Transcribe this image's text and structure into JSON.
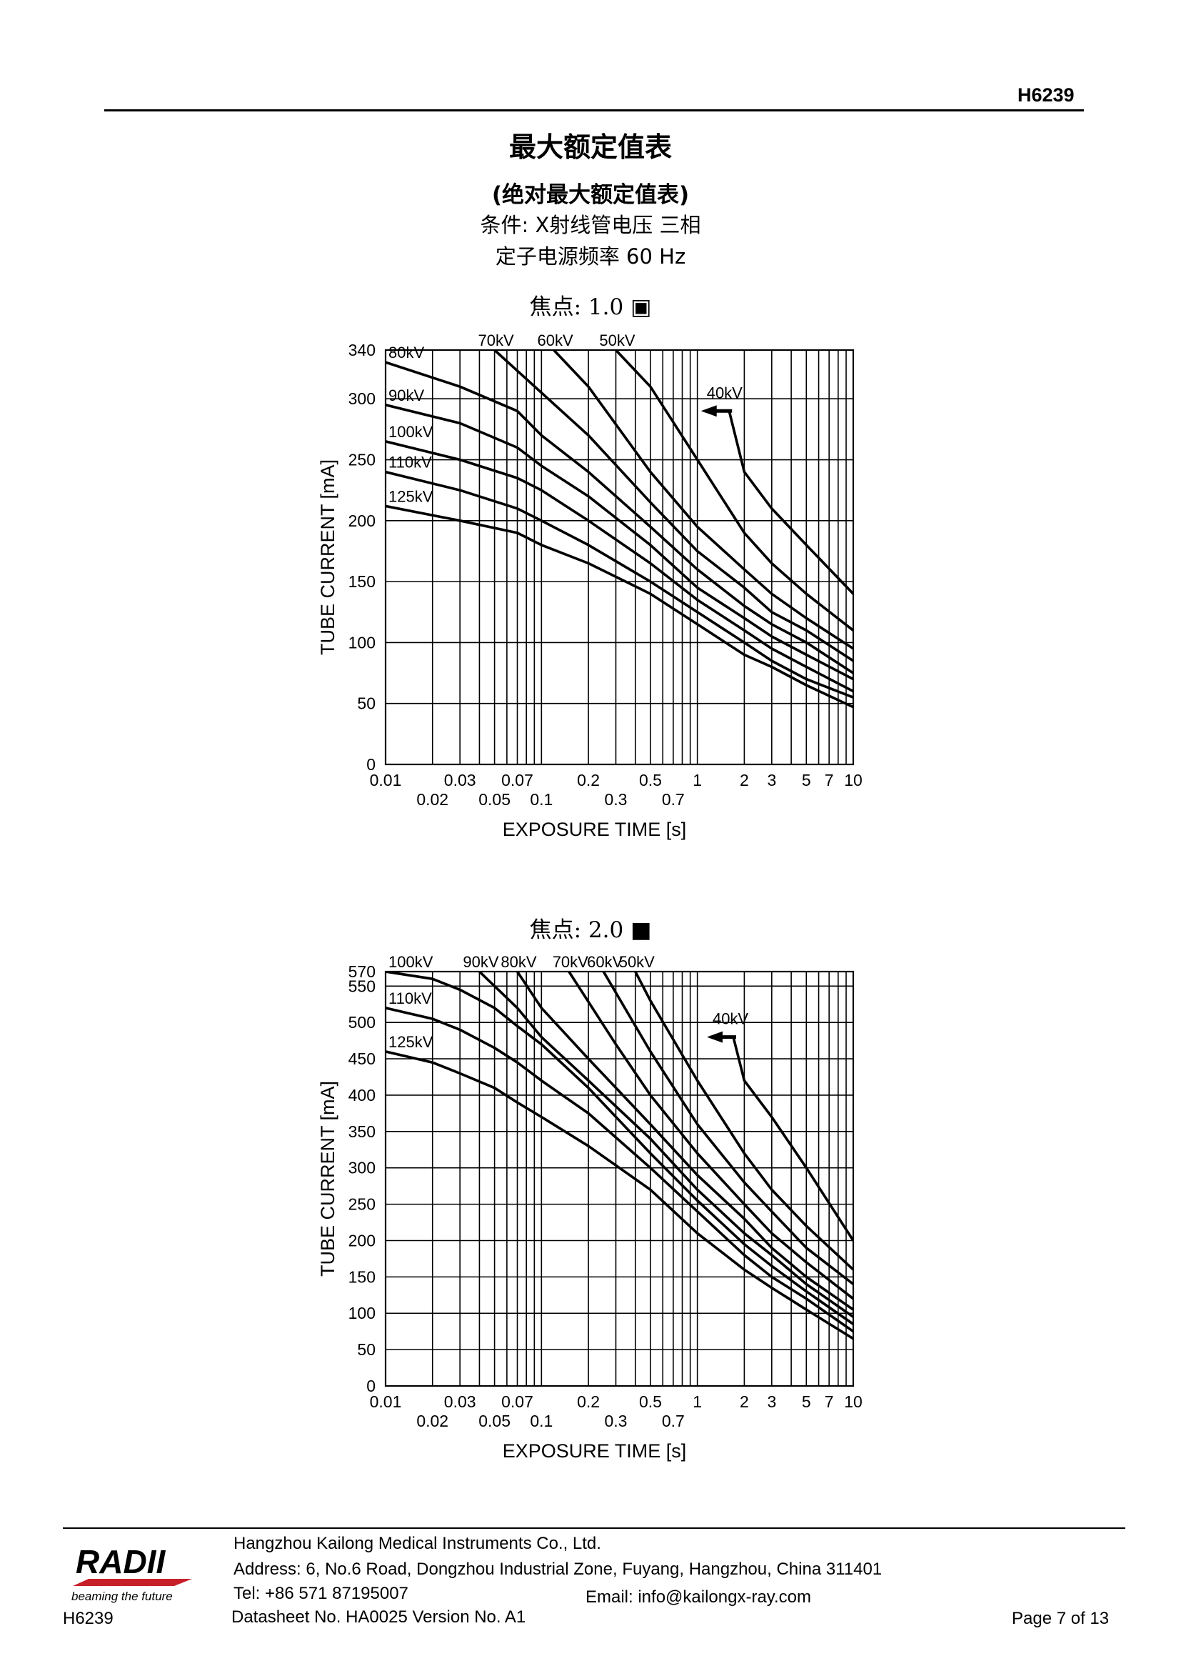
{
  "header": {
    "doc_code": "H6239"
  },
  "title": "最大额定值表",
  "subtitle": "(绝对最大额定值表)",
  "conditions": {
    "line1": "条件: X射线管电压  三相",
    "line2": "定子电源频率  60 Hz"
  },
  "chart_data": [
    {
      "type": "line",
      "title": "焦点: 1.0 ▣",
      "xlabel": "EXPOSURE TIME  [s]",
      "ylabel": "TUBE CURRENT  [mA]",
      "xscale": "log",
      "xlim": [
        0.01,
        10
      ],
      "ylim": [
        0,
        340
      ],
      "yticks": [
        0,
        50,
        100,
        150,
        200,
        250,
        300,
        340
      ],
      "xticks_row1": [
        "0.01",
        "0.03",
        "0.07",
        "0.2",
        "0.5",
        "1",
        "2",
        "3",
        "5",
        "7",
        "10"
      ],
      "xticks_row2": [
        "0.02",
        "0.05",
        "0.1",
        "0.3",
        "0.7"
      ],
      "series": [
        {
          "name": "40kV",
          "x": [
            1.1,
            1.6,
            2,
            3,
            5,
            10
          ],
          "y": [
            290,
            290,
            240,
            210,
            180,
            140
          ]
        },
        {
          "name": "50kV",
          "x": [
            0.3,
            0.5,
            1,
            2,
            3,
            5,
            10
          ],
          "y": [
            340,
            310,
            250,
            190,
            165,
            140,
            110
          ]
        },
        {
          "name": "60kV",
          "x": [
            0.12,
            0.2,
            0.5,
            1,
            2,
            3,
            5,
            10
          ],
          "y": [
            340,
            310,
            240,
            195,
            160,
            140,
            120,
            95
          ]
        },
        {
          "name": "70kV",
          "x": [
            0.05,
            0.1,
            0.2,
            0.5,
            1,
            2,
            3,
            5,
            10
          ],
          "y": [
            340,
            305,
            270,
            215,
            175,
            145,
            125,
            110,
            85
          ]
        },
        {
          "name": "80kV",
          "x": [
            0.01,
            0.03,
            0.07,
            0.1,
            0.2,
            0.5,
            1,
            2,
            3,
            5,
            10
          ],
          "y": [
            330,
            310,
            290,
            270,
            240,
            195,
            160,
            130,
            115,
            100,
            75
          ]
        },
        {
          "name": "90kV",
          "x": [
            0.01,
            0.03,
            0.07,
            0.1,
            0.2,
            0.5,
            1,
            2,
            3,
            5,
            10
          ],
          "y": [
            295,
            280,
            260,
            245,
            220,
            180,
            145,
            120,
            105,
            90,
            70
          ]
        },
        {
          "name": "100kV",
          "x": [
            0.01,
            0.03,
            0.07,
            0.1,
            0.2,
            0.5,
            1,
            2,
            3,
            5,
            10
          ],
          "y": [
            265,
            250,
            235,
            225,
            200,
            165,
            135,
            110,
            95,
            80,
            60
          ]
        },
        {
          "name": "110kV",
          "x": [
            0.01,
            0.03,
            0.07,
            0.1,
            0.2,
            0.5,
            1,
            2,
            3,
            5,
            10
          ],
          "y": [
            240,
            225,
            210,
            200,
            180,
            150,
            125,
            100,
            85,
            70,
            55
          ]
        },
        {
          "name": "125kV",
          "x": [
            0.01,
            0.03,
            0.07,
            0.1,
            0.2,
            0.5,
            1,
            2,
            3,
            5,
            10
          ],
          "y": [
            212,
            200,
            190,
            180,
            165,
            140,
            115,
            90,
            80,
            65,
            47
          ]
        }
      ]
    },
    {
      "type": "line",
      "title": "焦点: 2.0 ■",
      "xlabel": "EXPOSURE TIME  [s]",
      "ylabel": "TUBE CURRENT  [mA]",
      "xscale": "log",
      "xlim": [
        0.01,
        10
      ],
      "ylim": [
        0,
        570
      ],
      "yticks": [
        0,
        50,
        100,
        150,
        200,
        250,
        300,
        350,
        400,
        450,
        500,
        550,
        570
      ],
      "xticks_row1": [
        "0.01",
        "0.03",
        "0.07",
        "0.2",
        "0.5",
        "1",
        "2",
        "3",
        "5",
        "7",
        "10"
      ],
      "xticks_row2": [
        "0.02",
        "0.05",
        "0.1",
        "0.3",
        "0.7"
      ],
      "series": [
        {
          "name": "40kV",
          "x": [
            1.2,
            1.7,
            2,
            3,
            5,
            10
          ],
          "y": [
            480,
            480,
            420,
            370,
            300,
            200
          ]
        },
        {
          "name": "50kV",
          "x": [
            0.4,
            0.5,
            1,
            2,
            3,
            5,
            10
          ],
          "y": [
            570,
            530,
            420,
            320,
            270,
            220,
            160
          ]
        },
        {
          "name": "60kV",
          "x": [
            0.25,
            0.5,
            1,
            2,
            3,
            5,
            10
          ],
          "y": [
            570,
            460,
            360,
            280,
            240,
            190,
            140
          ]
        },
        {
          "name": "70kV",
          "x": [
            0.15,
            0.3,
            0.5,
            1,
            2,
            3,
            5,
            10
          ],
          "y": [
            570,
            470,
            400,
            320,
            250,
            210,
            170,
            120
          ]
        },
        {
          "name": "80kV",
          "x": [
            0.07,
            0.1,
            0.2,
            0.5,
            1,
            2,
            3,
            5,
            10
          ],
          "y": [
            570,
            520,
            450,
            360,
            290,
            230,
            190,
            150,
            105
          ]
        },
        {
          "name": "90kV",
          "x": [
            0.04,
            0.07,
            0.1,
            0.2,
            0.5,
            1,
            2,
            3,
            5,
            10
          ],
          "y": [
            570,
            520,
            480,
            420,
            340,
            270,
            210,
            180,
            140,
            95
          ]
        },
        {
          "name": "100kV",
          "x": [
            0.01,
            0.02,
            0.03,
            0.05,
            0.07,
            0.1,
            0.2,
            0.5,
            1,
            2,
            3,
            5,
            10
          ],
          "y": [
            570,
            560,
            545,
            520,
            495,
            470,
            410,
            320,
            255,
            195,
            165,
            130,
            85
          ]
        },
        {
          "name": "110kV",
          "x": [
            0.01,
            0.02,
            0.03,
            0.05,
            0.07,
            0.1,
            0.2,
            0.5,
            1,
            2,
            3,
            5,
            10
          ],
          "y": [
            520,
            505,
            490,
            465,
            445,
            420,
            375,
            300,
            240,
            180,
            150,
            120,
            75
          ]
        },
        {
          "name": "125kV",
          "x": [
            0.01,
            0.02,
            0.03,
            0.05,
            0.07,
            0.1,
            0.2,
            0.5,
            1,
            2,
            3,
            5,
            10
          ],
          "y": [
            460,
            445,
            430,
            410,
            390,
            370,
            330,
            270,
            210,
            160,
            135,
            105,
            65
          ]
        }
      ]
    }
  ],
  "footer": {
    "logo_text": "RADII",
    "logo_tagline": "beaming the future",
    "doc_code": "H6239",
    "company": "Hangzhou Kailong Medical Instruments Co., Ltd.",
    "address": "Address: 6, No.6 Road, Dongzhou Industrial Zone, Fuyang, Hangzhou, China 311401",
    "tel": "Tel: +86 571 87195007",
    "email": "Email: info@kailongx-ray.com",
    "datasheet": "Datasheet No. HA0025    Version No. A1",
    "page": "Page  7  of  13"
  }
}
